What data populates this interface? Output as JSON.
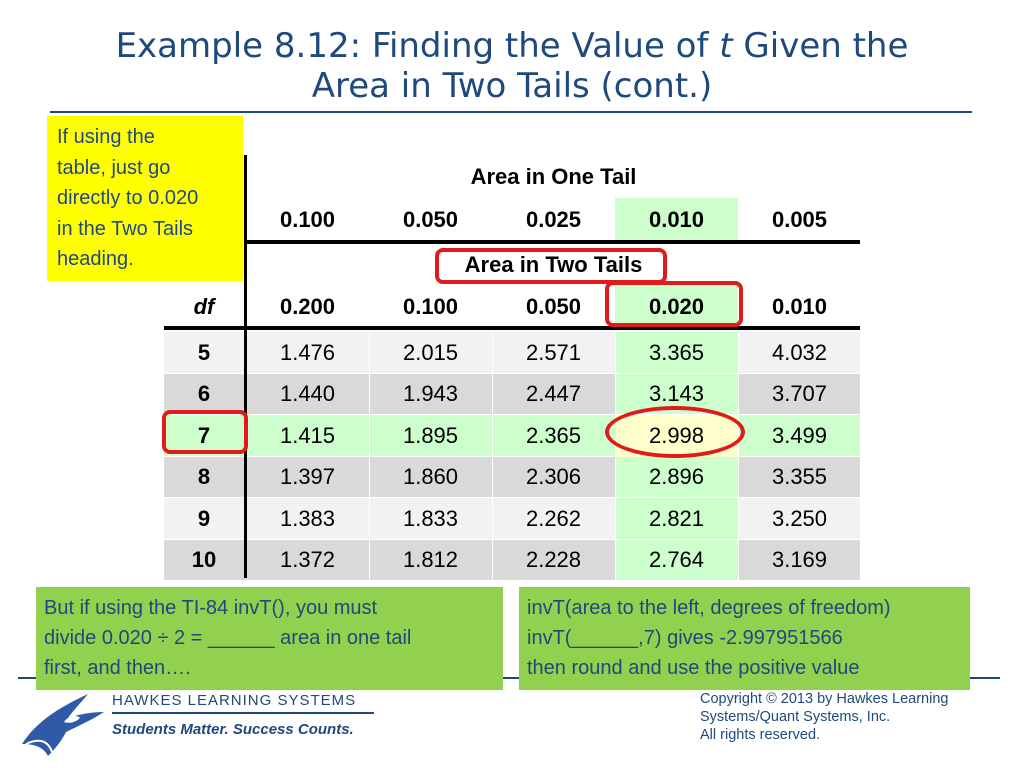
{
  "title": {
    "line1_before": "Example 8.12: Finding the Value of ",
    "line1_italic": "t",
    "line1_after": " Given the",
    "line2": "Area in Two Tails (cont.)"
  },
  "note_yellow": [
    "If using the",
    "table, just go",
    "directly to 0.020",
    "in the Two Tails",
    "heading."
  ],
  "table": {
    "one_tail_heading": "Area in One Tail",
    "one_tail_values": [
      "0.100",
      "0.050",
      "0.025",
      "0.010",
      "0.005"
    ],
    "two_tails_heading": "Area in Two Tails",
    "df_label": "df",
    "two_tails_values": [
      "0.200",
      "0.100",
      "0.050",
      "0.020",
      "0.010"
    ],
    "rows": [
      {
        "df": "5",
        "values": [
          "1.476",
          "2.015",
          "2.571",
          "3.365",
          "4.032"
        ]
      },
      {
        "df": "6",
        "values": [
          "1.440",
          "1.943",
          "2.447",
          "3.143",
          "3.707"
        ]
      },
      {
        "df": "7",
        "values": [
          "1.415",
          "1.895",
          "2.365",
          "2.998",
          "3.499"
        ]
      },
      {
        "df": "8",
        "values": [
          "1.397",
          "1.860",
          "2.306",
          "2.896",
          "3.355"
        ]
      },
      {
        "df": "9",
        "values": [
          "1.383",
          "1.833",
          "2.262",
          "2.821",
          "3.250"
        ]
      },
      {
        "df": "10",
        "values": [
          "1.372",
          "1.812",
          "2.228",
          "2.764",
          "3.169"
        ]
      }
    ]
  },
  "note_left": [
    "But if using the TI-84 invT(), you must",
    "divide 0.020 ÷ 2  = ______ area in one tail",
    "first, and then…."
  ],
  "note_right": [
    "invT(area to the left, degrees of freedom)",
    "invT(______,7) gives -2.997951566",
    "then round and use the positive value"
  ],
  "footer": {
    "company": "HAWKES  LEARNING  SYSTEMS",
    "tagline": "Students Matter. Success Counts.",
    "copyright": [
      "Copyright © 2013 by Hawkes Learning",
      "Systems/Quant Systems, Inc.",
      "All rights reserved."
    ]
  },
  "colors": {
    "title": "#1F497D",
    "highlight_yellow": "#FFFF00",
    "note_green": "#92D050",
    "column_highlight": "#CCFFCC",
    "selected_cell": "#FFFFCC",
    "row_shade": "#D9D9D9",
    "annotation_red": "#E01B1B"
  },
  "icons": {
    "logo": "eagle-logo-icon"
  }
}
